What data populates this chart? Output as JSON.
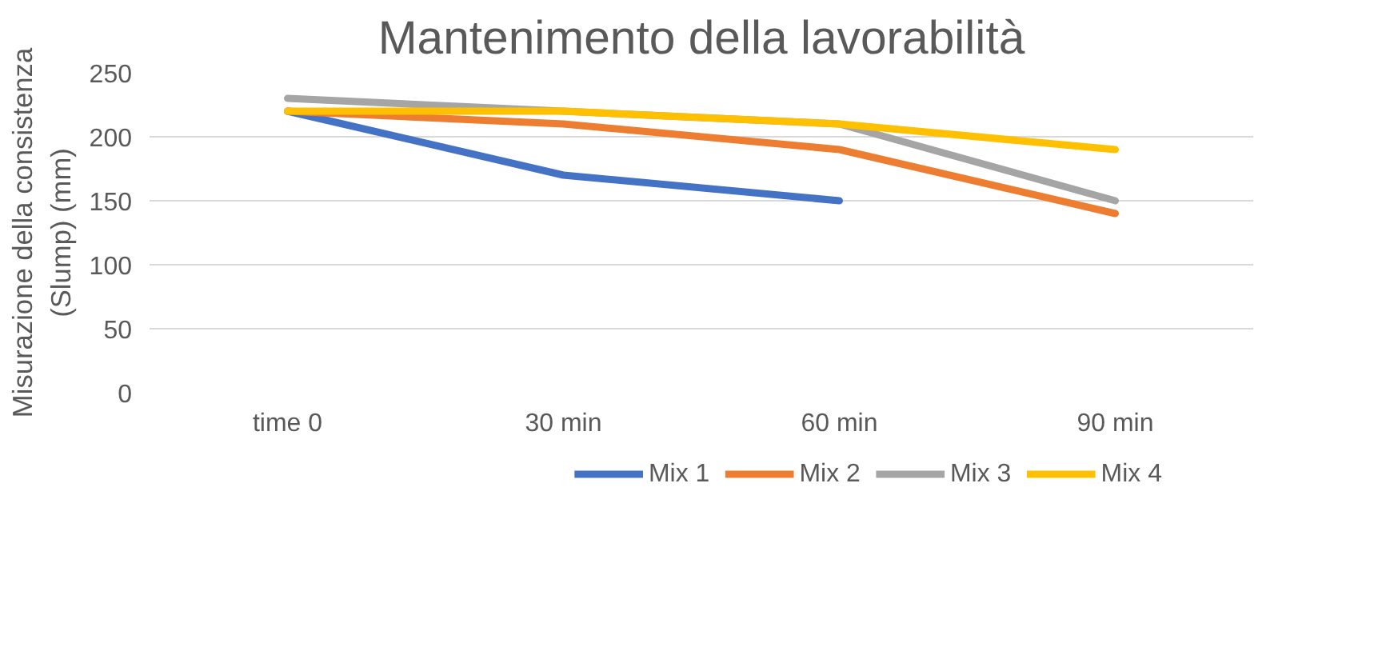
{
  "chart_data": {
    "type": "line",
    "title": "Mantenimento della lavorabilità",
    "ylabel": "Misurazione della consistenza (Slump) (mm)",
    "categories": [
      "time 0",
      "30 min",
      "60 min",
      "90 min"
    ],
    "series": [
      {
        "name": "Mix 1",
        "color": "#4472c4",
        "values": [
          220,
          170,
          150,
          null
        ]
      },
      {
        "name": "Mix 2",
        "color": "#ed7d31",
        "values": [
          220,
          210,
          190,
          140
        ]
      },
      {
        "name": "Mix 3",
        "color": "#a5a5a5",
        "values": [
          230,
          220,
          210,
          150
        ]
      },
      {
        "name": "Mix 4",
        "color": "#ffc000",
        "values": [
          220,
          220,
          210,
          190
        ]
      }
    ],
    "ylim": [
      0,
      250
    ],
    "yticks": [
      0,
      50,
      100,
      150,
      200,
      250
    ],
    "grid": "y",
    "legend": "bottom",
    "marker": "none",
    "line_style": "solid"
  }
}
